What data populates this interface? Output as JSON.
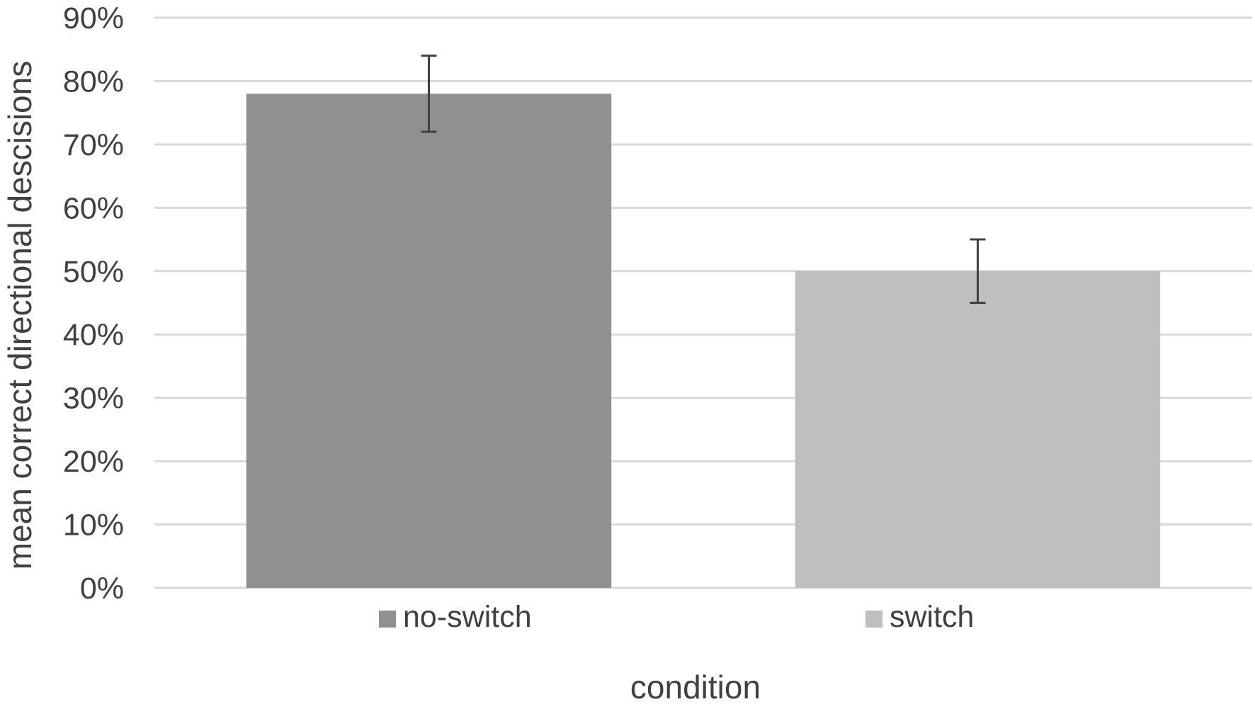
{
  "chart_data": {
    "type": "bar",
    "categories": [
      "no-switch",
      "switch"
    ],
    "series": [
      {
        "name": "no-switch",
        "values": [
          78,
          null
        ],
        "error": [
          6,
          null
        ],
        "color": "#909090"
      },
      {
        "name": "switch",
        "values": [
          null,
          50
        ],
        "error": [
          null,
          5
        ],
        "color": "#bfbfbf"
      }
    ],
    "xlabel": "condition",
    "ylabel": "mean correct directional descisions",
    "ylim": [
      0,
      90
    ],
    "yticks": [
      0,
      10,
      20,
      30,
      40,
      50,
      60,
      70,
      80,
      90
    ],
    "ytick_labels": [
      "0%",
      "10%",
      "20%",
      "30%",
      "40%",
      "50%",
      "60%",
      "70%",
      "80%",
      "90%"
    ],
    "grid": true,
    "legend_position": "bottom",
    "gridline_color": "#d9d9d9",
    "errorbar_color": "#404040"
  }
}
